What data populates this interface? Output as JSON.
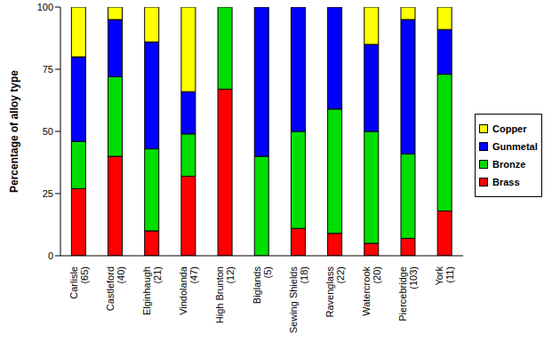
{
  "chart_data": {
    "type": "bar",
    "stacked": true,
    "y_label": "Percentage of alloy type",
    "categories": [
      "Carlisle (65)",
      "Castleford (40)",
      "Elginhaugh (21)",
      "Vindolanda (47)",
      "High Brunton (12)",
      "Biglands (5)",
      "Sewing Shields (18)",
      "Ravenglass (22)",
      "Watercrook (20)",
      "Piercebridge (103)",
      "York (11)"
    ],
    "series": [
      {
        "name": "Brass",
        "color": "#ff0000",
        "values": [
          27,
          40,
          10,
          32,
          67,
          0,
          11,
          9,
          5,
          7,
          18
        ]
      },
      {
        "name": "Bronze",
        "color": "#00dd00",
        "values": [
          19,
          32,
          33,
          17,
          33,
          40,
          39,
          50,
          45,
          34,
          55
        ]
      },
      {
        "name": "Gunmetal",
        "color": "#0000ff",
        "values": [
          34,
          23,
          43,
          17,
          0,
          60,
          50,
          41,
          35,
          54,
          18
        ]
      },
      {
        "name": "Copper",
        "color": "#ffff00",
        "values": [
          20,
          5,
          14,
          34,
          0,
          0,
          0,
          0,
          15,
          5,
          9
        ]
      }
    ],
    "ylim": [
      0,
      100
    ],
    "yticks": [
      0,
      25,
      50,
      75,
      100
    ],
    "grid": false,
    "legend": "right"
  }
}
